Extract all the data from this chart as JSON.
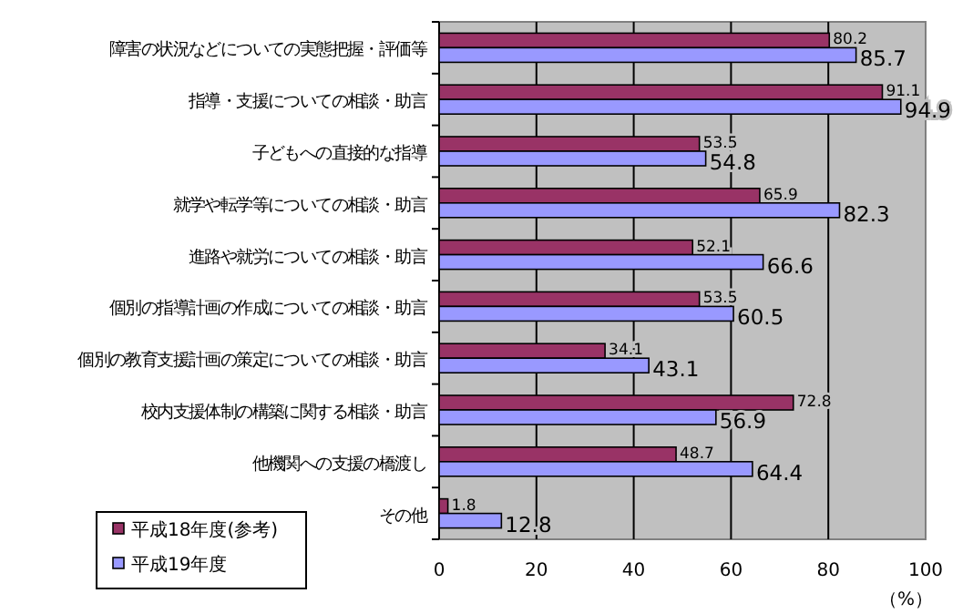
{
  "chart_data": {
    "type": "bar",
    "orientation": "horizontal",
    "xlabel": "（%）",
    "categories": [
      "障害の状況などについての実態把握・評価等",
      "指導・支援についての相談・助言",
      "子どもへの直接的な指導",
      "就学や転学等についての相談・助言",
      "進路や就労についての相談・助言",
      "個別の指導計画の作成についての相談・助言",
      "個別の教育支援計画の策定についての相談・助言",
      "校内支援体制の構築に関する相談・助言",
      "他機関への支援の橋渡し",
      "その他"
    ],
    "series": [
      {
        "name": "平成18年度(参考)",
        "color": "#993366",
        "values": [
          80.2,
          91.1,
          53.5,
          65.9,
          52.1,
          53.5,
          34.1,
          72.8,
          48.7,
          1.8
        ]
      },
      {
        "name": "平成19年度",
        "color": "#9999ff",
        "values": [
          85.7,
          94.9,
          54.8,
          82.3,
          66.6,
          60.5,
          43.1,
          56.9,
          64.4,
          12.8
        ]
      }
    ],
    "xlim": [
      0,
      100
    ],
    "xticks": [
      0,
      20,
      40,
      60,
      80,
      100
    ],
    "grid": "x",
    "legend": "bottom left",
    "data_labels": true
  }
}
